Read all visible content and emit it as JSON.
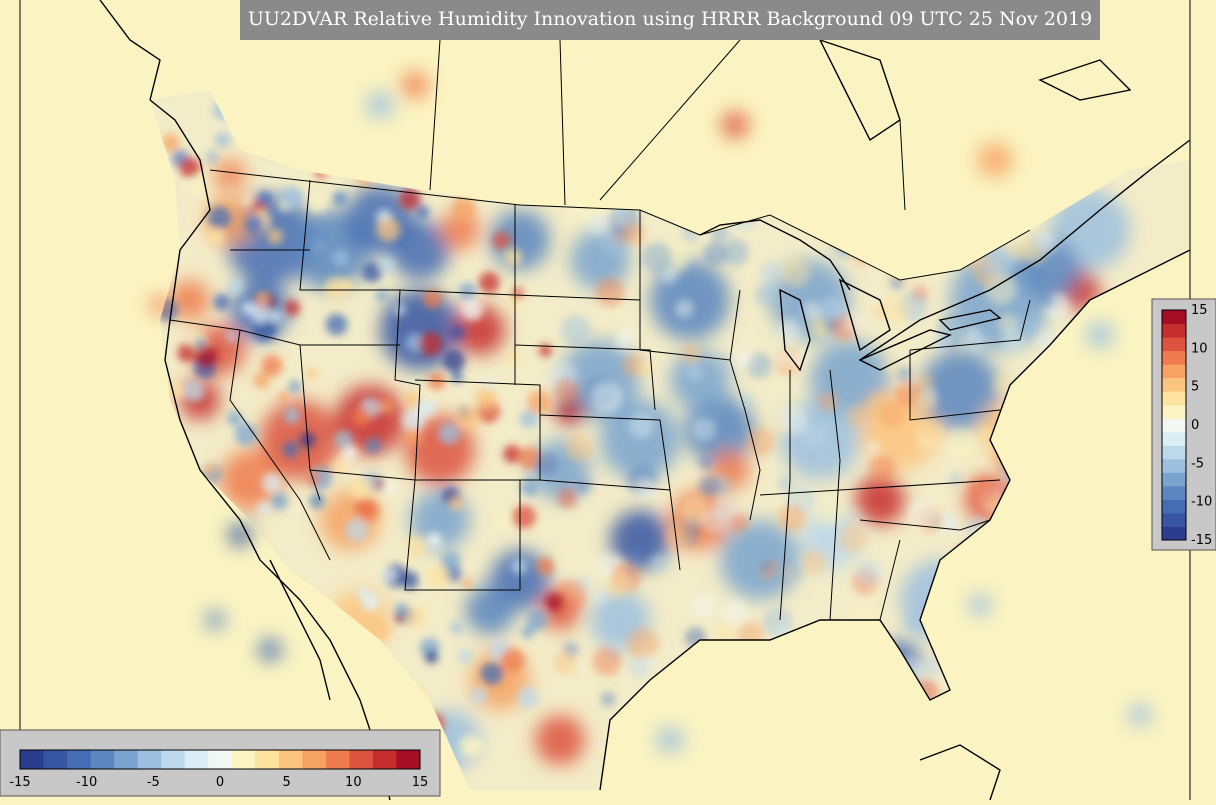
{
  "title": "UU2DVAR Relative Humidity Innovation using HRRR Background 09 UTC 25 Nov 2019",
  "colorbar": {
    "min": -15,
    "max": 15,
    "ticks": [
      "-15",
      "-10",
      "-5",
      "0",
      "5",
      "10",
      "15"
    ],
    "colors": [
      "#2b3d8f",
      "#3755a3",
      "#456db4",
      "#5b86c0",
      "#7aa4cf",
      "#9cc0de",
      "#bdd8ea",
      "#dceef5",
      "#f4f8f4",
      "#fbf4c2",
      "#fde2a0",
      "#fbc47f",
      "#f6a263",
      "#ef7c4e",
      "#dc5340",
      "#c62d2f",
      "#a50f26"
    ]
  },
  "map": {
    "ocean_color": "#fbf4c2",
    "land_background": "#e5eef4",
    "border_color": "#000000"
  }
}
